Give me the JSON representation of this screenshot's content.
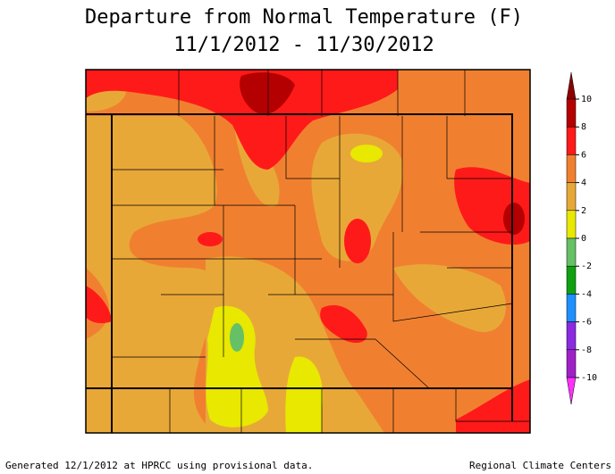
{
  "title": {
    "line1": "Departure from Normal Temperature (F)",
    "line2": "11/1/2012 - 11/30/2012"
  },
  "legend": {
    "ticks": [
      10,
      8,
      6,
      4,
      2,
      0,
      -2,
      -4,
      -6,
      -8,
      -10
    ],
    "colors": [
      "#8c0000",
      "#b40000",
      "#ff1a1a",
      "#f08030",
      "#e8a838",
      "#e8e800",
      "#66c066",
      "#10a010",
      "#1e90ff",
      "#8a2be2",
      "#a020c8",
      "#ff30ff"
    ]
  },
  "footer": {
    "left": "Generated 12/1/2012 at HPRCC using provisional data.",
    "right": "Regional Climate Centers"
  }
}
